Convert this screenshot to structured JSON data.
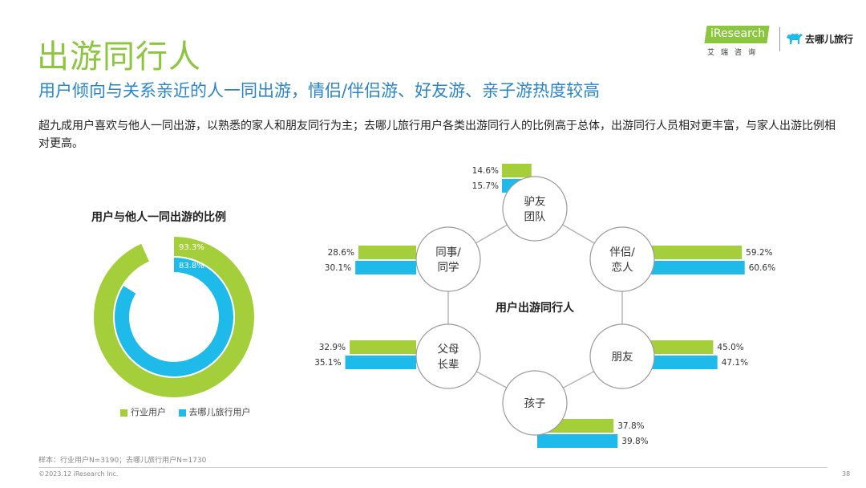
{
  "header": {
    "title": "出游同行人",
    "subtitle": "用户倾向与关系亲近的人一同出游，情侣/伴侣游、好友游、亲子游热度较高",
    "description": "超九成用户喜欢与他人一同出游，以熟悉的家人和朋友同行为主；去哪儿旅行用户各类出游同行人的比例高于总体，出游同行人员相对更丰富，与家人出游比例相对更高。"
  },
  "logos": {
    "iresearch_brand": "iResearch",
    "iresearch_cn": "艾瑞咨询",
    "qunar_text": "去哪儿旅行"
  },
  "colors": {
    "green": "#a5cf3a",
    "blue": "#1ebaea",
    "title_green": "#8cc63f",
    "subtitle_blue": "#2a86c9"
  },
  "chart_data": [
    {
      "type": "donut",
      "title": "用户与他人一同出游的比例",
      "series": [
        {
          "name": "行业用户",
          "value": 93.3,
          "label": "93.3%",
          "color": "#a5cf3a"
        },
        {
          "name": "去哪儿旅行用户",
          "value": 83.8,
          "label": "83.8%",
          "color": "#1ebaea"
        }
      ],
      "legend_placement": "bottom"
    },
    {
      "type": "bar",
      "center_label": "用户出游同行人",
      "series_names": [
        "行业用户",
        "去哪儿旅行用户"
      ],
      "categories": [
        {
          "lines": [
            "驴友",
            "团队"
          ],
          "values": [
            14.6,
            15.7
          ],
          "labels": [
            "14.6%",
            "15.7%"
          ]
        },
        {
          "lines": [
            "伴侣/",
            "恋人"
          ],
          "values": [
            59.2,
            60.6
          ],
          "labels": [
            "59.2%",
            "60.6%"
          ]
        },
        {
          "lines": [
            "朋友"
          ],
          "values": [
            45.0,
            47.1
          ],
          "labels": [
            "45.0%",
            "47.1%"
          ]
        },
        {
          "lines": [
            "孩子"
          ],
          "values": [
            37.8,
            39.8
          ],
          "labels": [
            "37.8%",
            "39.8%"
          ]
        },
        {
          "lines": [
            "父母",
            "长辈"
          ],
          "values": [
            32.9,
            35.1
          ],
          "labels": [
            "32.9%",
            "35.1%"
          ]
        },
        {
          "lines": [
            "同事/",
            "同学"
          ],
          "values": [
            28.6,
            30.1
          ],
          "labels": [
            "28.6%",
            "30.1%"
          ]
        }
      ]
    }
  ],
  "footer": {
    "sample": "样本：行业用户N=3190；去哪儿旅行用户N=1730",
    "copyright": "©2023.12 iResearch Inc.",
    "page": "38"
  }
}
